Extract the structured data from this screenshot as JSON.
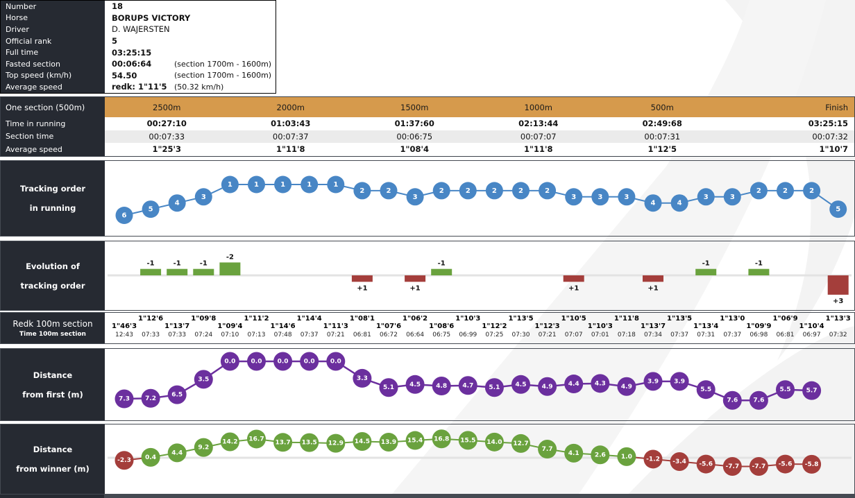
{
  "colors": {
    "dark_panel": "#262a32",
    "header_orange": "#d69a4c",
    "blue": "#4886c5",
    "purple": "#6b2f9e",
    "green": "#6aa23e",
    "red": "#a43e3b",
    "row_alt": "#ebebeb",
    "zero_line": "#e3e3e3",
    "watermark": "#f3f3f3"
  },
  "info": {
    "rows": [
      {
        "label": "Number",
        "value": "18",
        "note": "",
        "bold": true
      },
      {
        "label": "Horse",
        "value": "BORUPS VICTORY",
        "note": "",
        "bold": true
      },
      {
        "label": "Driver",
        "value": "D. WAJERSTEN",
        "note": "",
        "bold": false
      },
      {
        "label": "Official rank",
        "value": "5",
        "note": "",
        "bold": true
      },
      {
        "label": "Full time",
        "value": "03:25:15",
        "note": "",
        "bold": true
      },
      {
        "label": "Fasted section",
        "value": "00:06:64",
        "note": "(section 1700m - 1600m)",
        "bold": true
      },
      {
        "label": "Top speed (km/h)",
        "value": "54.50",
        "note": "(section 1700m - 1600m)",
        "bold": true
      },
      {
        "label": "Average speed",
        "value": "redk: 1\"11'5",
        "note": "(50.32 km/h)",
        "bold": true
      }
    ]
  },
  "section_table": {
    "corner_label": "One section (500m)",
    "columns": [
      "2500m",
      "2000m",
      "1500m",
      "1000m",
      "500m",
      "Finish"
    ],
    "rows": [
      {
        "label": "Time in running",
        "bold": true,
        "alt": false,
        "values": [
          "00:27:10",
          "01:03:43",
          "01:37:60",
          "02:13:44",
          "02:49:68",
          "03:25:15"
        ]
      },
      {
        "label": "Section time",
        "bold": false,
        "alt": true,
        "values": [
          "00:07:33",
          "00:07:37",
          "00:06:75",
          "00:07:07",
          "00:07:31",
          "00:07:32"
        ]
      },
      {
        "label": "Average speed",
        "bold": true,
        "alt": false,
        "values": [
          "1\"25'3",
          "1\"11'8",
          "1\"08'4",
          "1\"11'8",
          "1\"12'5",
          "1\"10'7"
        ]
      }
    ]
  },
  "panels": {
    "tracking": {
      "lines": [
        "Tracking order",
        "in running"
      ]
    },
    "evolution": {
      "lines": [
        "Evolution of",
        "tracking order"
      ]
    },
    "strip": {
      "line1": "Redk 100m section",
      "line2": "Time 100m section"
    },
    "dist_first": {
      "lines": [
        "Distance",
        "from first (m)"
      ]
    },
    "dist_winner": {
      "lines": [
        "Distance",
        "from winner (m)"
      ]
    }
  },
  "chart_data": [
    {
      "type": "line",
      "title": "Tracking order in running",
      "xlabel": "100m section index (1-28)",
      "ylabel": "position in running (1 = leader, inverted axis)",
      "values": [
        6,
        5,
        4,
        3,
        1,
        1,
        1,
        1,
        1,
        2,
        2,
        3,
        2,
        2,
        2,
        2,
        2,
        3,
        3,
        3,
        4,
        4,
        3,
        3,
        2,
        2,
        2,
        5
      ]
    },
    {
      "type": "bar",
      "title": "Evolution of tracking order",
      "xlabel": "change occurring at 100m section i+1",
      "ylabel": "position change (negative = gained places, positive = lost places)",
      "values": [
        -1,
        -1,
        -1,
        -2,
        0,
        0,
        0,
        0,
        1,
        0,
        1,
        -1,
        0,
        0,
        0,
        0,
        1,
        0,
        0,
        1,
        0,
        -1,
        0,
        -1,
        0,
        0,
        3
      ]
    },
    {
      "type": "table",
      "title": "Redk 100m section / Time 100m section",
      "redk": [
        "1\"46'3",
        "1\"12'6",
        "1\"13'7",
        "1\"09'8",
        "1\"09'4",
        "1\"11'2",
        "1\"14'6",
        "1\"14'4",
        "1\"11'3",
        "1\"08'1",
        "1\"07'6",
        "1\"06'2",
        "1\"08'6",
        "1\"10'3",
        "1\"12'2",
        "1\"13'5",
        "1\"12'3",
        "1\"10'5",
        "1\"10'3",
        "1\"11'8",
        "1\"13'7",
        "1\"13'5",
        "1\"13'4",
        "1\"13'0",
        "1\"09'9",
        "1\"06'9",
        "1\"10'4",
        "1\"13'3"
      ],
      "times": [
        "12:43",
        "07:33",
        "07:33",
        "07:24",
        "07:10",
        "07:13",
        "07:48",
        "07:37",
        "07:21",
        "06:81",
        "06:72",
        "06:64",
        "06:75",
        "06:99",
        "07:25",
        "07:30",
        "07:21",
        "07:07",
        "07:01",
        "07:18",
        "07:34",
        "07:37",
        "07:31",
        "07:37",
        "06:98",
        "06:81",
        "06:97",
        "07:32"
      ]
    },
    {
      "type": "line",
      "title": "Distance from first (m)",
      "ylabel": "meters behind leader (0 = leading, inverted axis)",
      "values": [
        7.3,
        7.2,
        6.5,
        3.5,
        0.0,
        0.0,
        0.0,
        0.0,
        0.0,
        3.3,
        5.1,
        4.5,
        4.8,
        4.7,
        5.1,
        4.5,
        4.9,
        4.4,
        4.3,
        4.9,
        3.9,
        3.9,
        5.5,
        7.6,
        7.6,
        5.5,
        5.7
      ]
    },
    {
      "type": "line",
      "title": "Distance from winner (m)",
      "ylabel": "meters ahead (+, green) / behind (-, red) the eventual winner",
      "values": [
        -2.3,
        0.4,
        4.4,
        9.2,
        14.2,
        16.7,
        13.7,
        13.5,
        12.9,
        14.5,
        13.9,
        15.4,
        16.8,
        15.5,
        14.0,
        12.7,
        7.7,
        4.1,
        2.6,
        1.0,
        -1.2,
        -3.4,
        -5.6,
        -7.7,
        -7.7,
        -5.6,
        -5.8
      ]
    }
  ]
}
